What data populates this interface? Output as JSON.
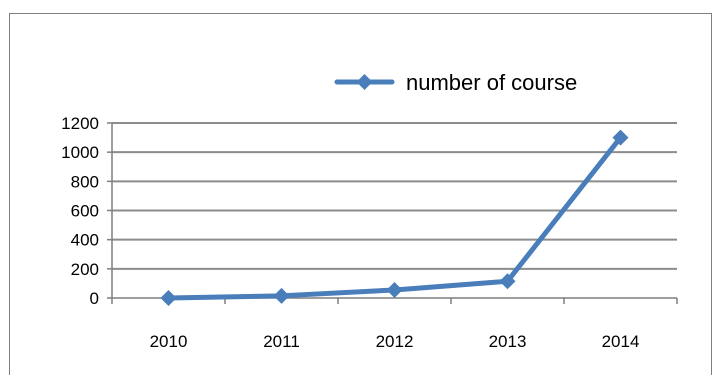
{
  "chart_data": {
    "type": "line",
    "title": "",
    "xlabel": "",
    "ylabel": "",
    "categories": [
      "2010",
      "2011",
      "2012",
      "2013",
      "2014"
    ],
    "series": [
      {
        "name": "number of course",
        "values": [
          0,
          15,
          55,
          115,
          1100
        ],
        "color": "#4a7ebb"
      }
    ],
    "ylim": [
      0,
      1200
    ],
    "yticks": [
      "0",
      "200",
      "400",
      "600",
      "800",
      "1000",
      "1200"
    ],
    "grid": true,
    "legend": "top-right",
    "marker": "diamond"
  }
}
